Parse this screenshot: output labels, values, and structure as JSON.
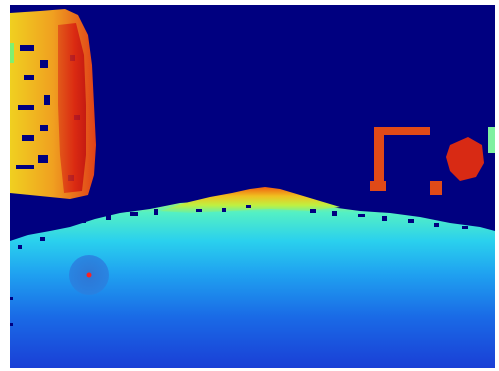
{
  "image": {
    "kind": "depth-map",
    "colormap": "jet",
    "colors": {
      "far": "#00007f",
      "background": "#000080",
      "floor_near": "#1a3fd6",
      "floor_mid": "#1fa0f0",
      "floor_horizon": "#54f0c4",
      "warm_wall": "#f0a020",
      "hot": "#d81e10",
      "marker": "#ff2020"
    }
  }
}
